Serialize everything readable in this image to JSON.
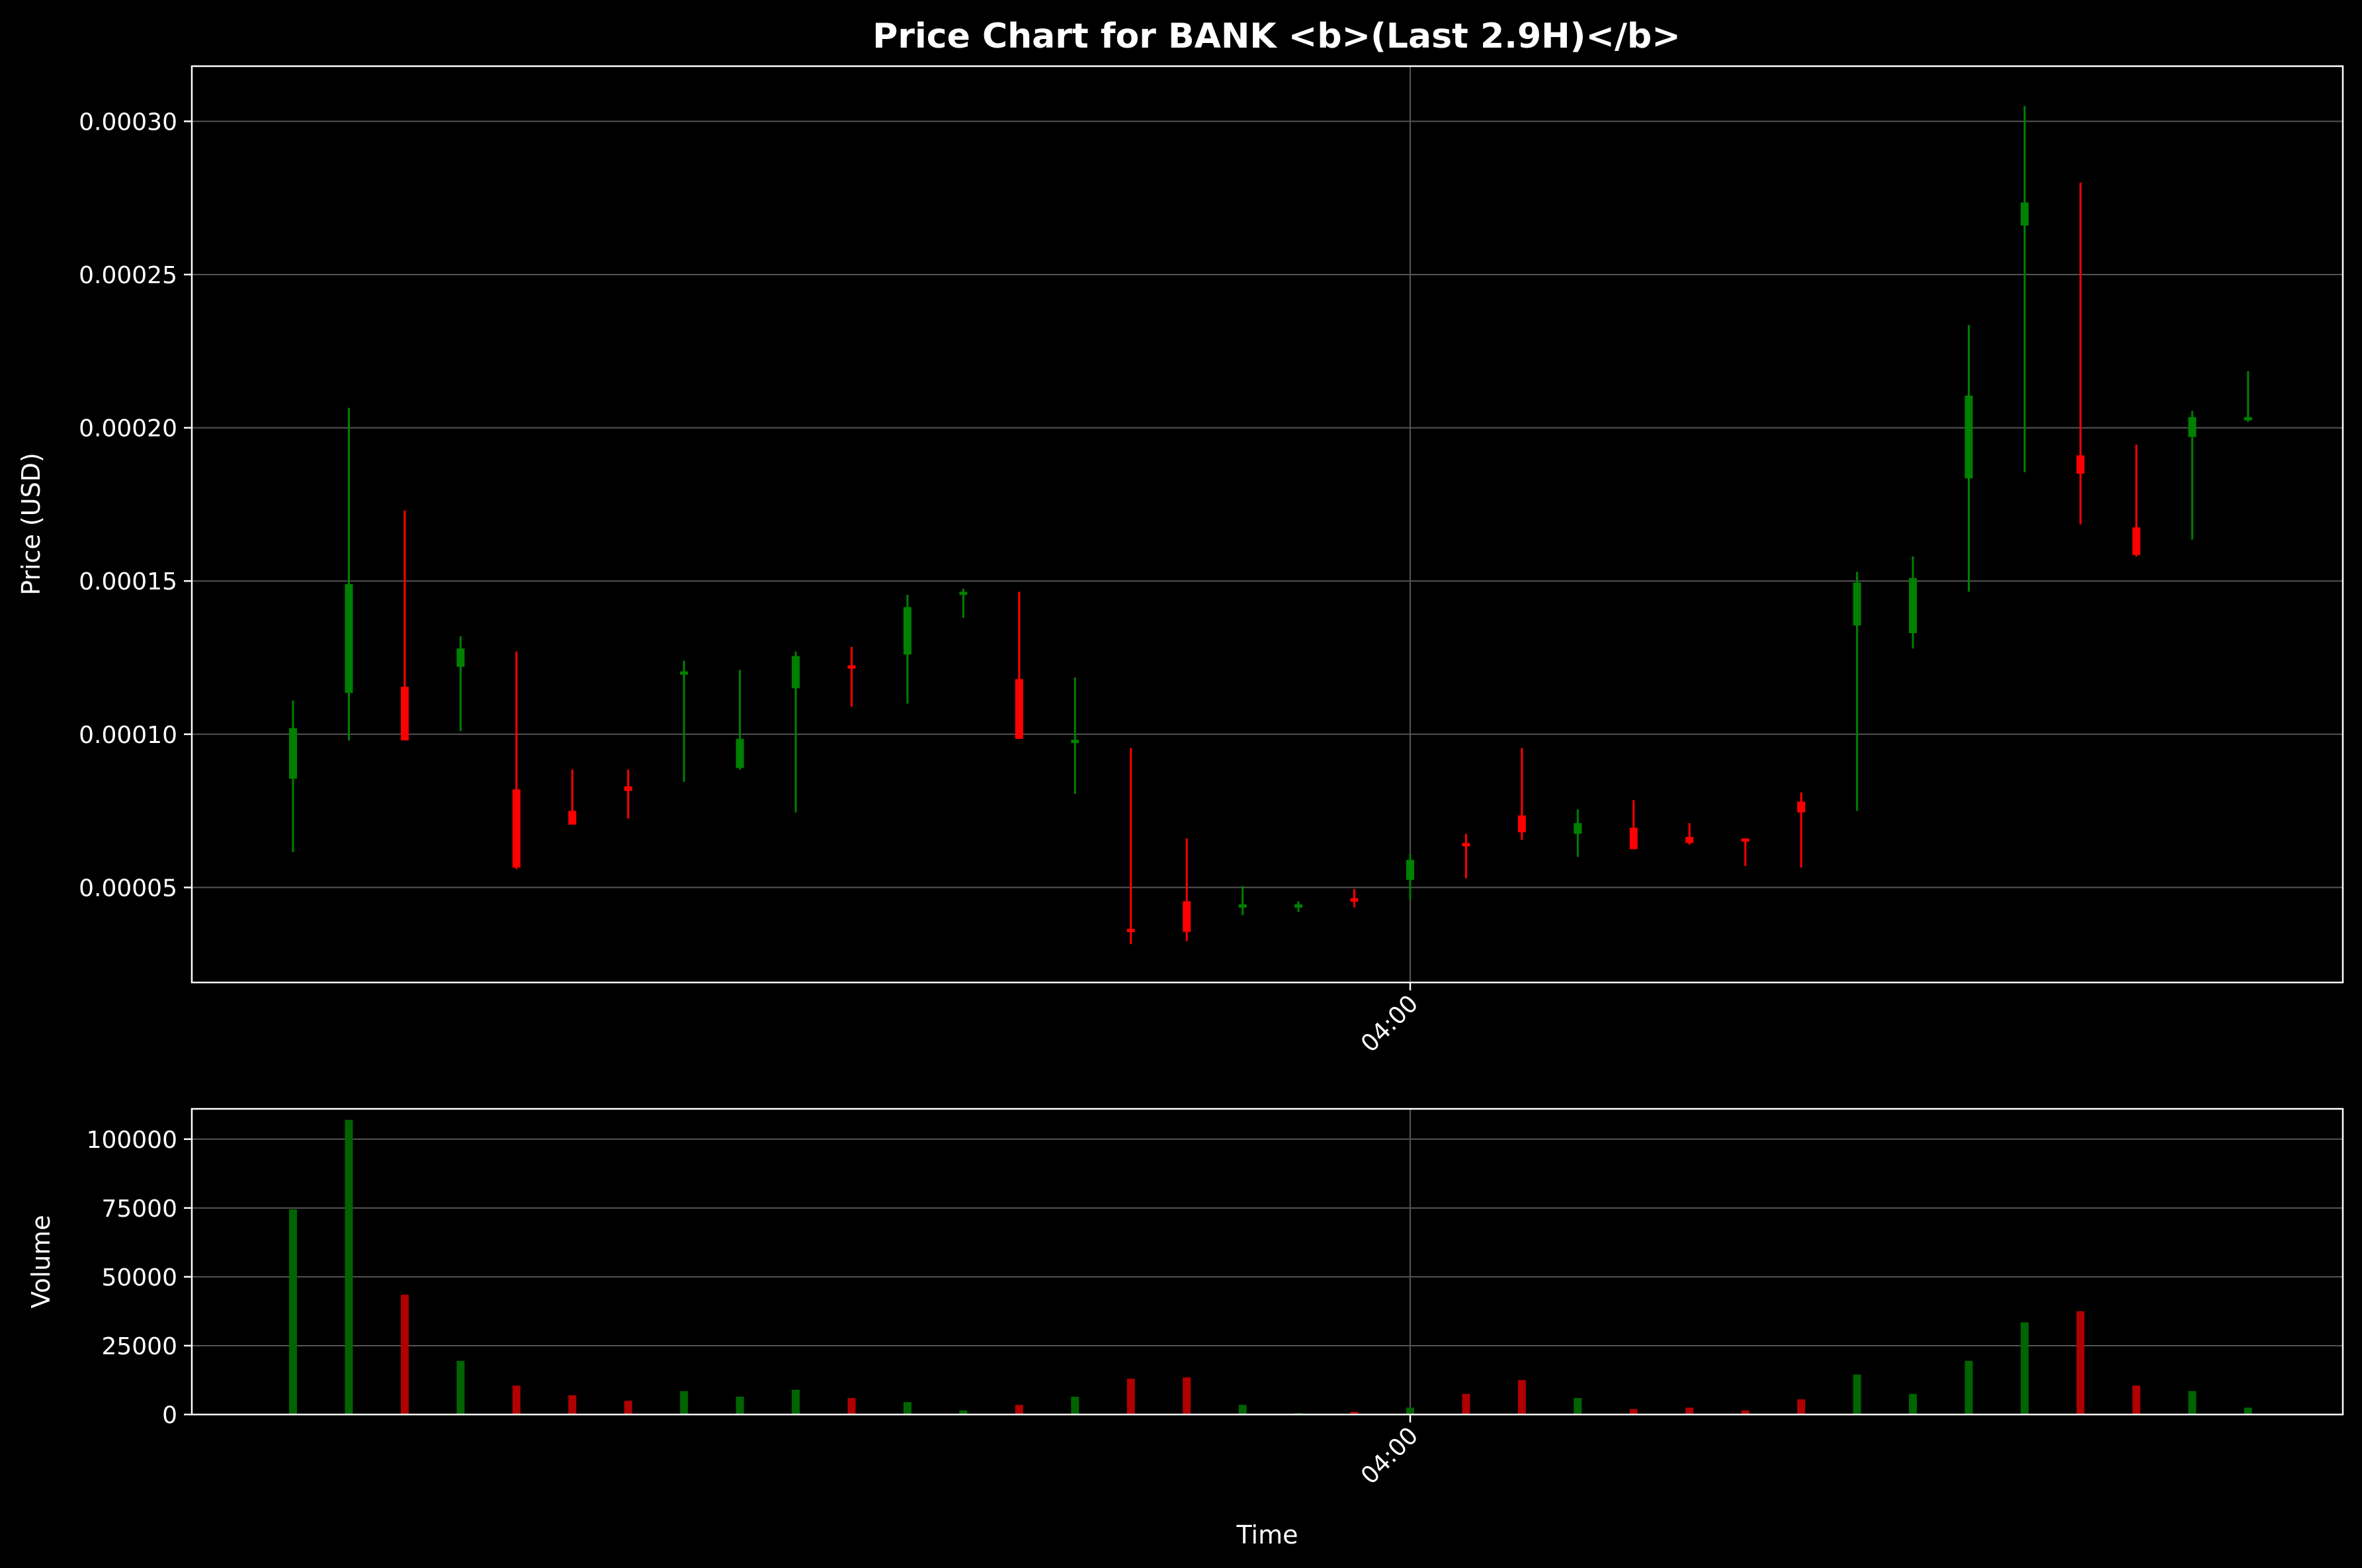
{
  "chart_data": {
    "type": "candlestick",
    "title": "Price Chart for BANK <b>(Last 2.9H)</b>",
    "xlabel": "Time",
    "price_ylabel": "Price (USD)",
    "volume_ylabel": "Volume",
    "x_tick_labels": [
      "04:00"
    ],
    "price_ylim": [
      1.9e-05,
      0.000318
    ],
    "price_ticks": [
      "0.00005",
      "0.00010",
      "0.00015",
      "0.00020",
      "0.00025",
      "0.00030"
    ],
    "volume_ylim": [
      0,
      111000
    ],
    "volume_ticks": [
      "0",
      "25000",
      "50000",
      "75000",
      "100000"
    ],
    "grid": true,
    "colors": {
      "background": "#000000",
      "up": "#008000",
      "down": "#ff0000",
      "grid": "#555555",
      "text": "#ffffff"
    },
    "candles": [
      {
        "open": 8.55e-05,
        "high": 0.000111,
        "low": 6.15e-05,
        "close": 0.000102,
        "volume": 74500
      },
      {
        "open": 0.0001135,
        "high": 0.0002065,
        "low": 9.8e-05,
        "close": 0.000149,
        "volume": 107000
      },
      {
        "open": 0.0001155,
        "high": 0.000173,
        "low": 9.8e-05,
        "close": 9.8e-05,
        "volume": 43500
      },
      {
        "open": 0.000122,
        "high": 0.000132,
        "low": 0.000101,
        "close": 0.000128,
        "volume": 19500
      },
      {
        "open": 8.2e-05,
        "high": 0.000127,
        "low": 5.6e-05,
        "close": 5.65e-05,
        "volume": 10500
      },
      {
        "open": 7.5e-05,
        "high": 8.85e-05,
        "low": 7.05e-05,
        "close": 7.05e-05,
        "volume": 7000
      },
      {
        "open": 8.3e-05,
        "high": 8.85e-05,
        "low": 7.25e-05,
        "close": 8.15e-05,
        "volume": 5000
      },
      {
        "open": 0.0001195,
        "high": 0.000124,
        "low": 8.45e-05,
        "close": 0.0001205,
        "volume": 8500
      },
      {
        "open": 8.9e-05,
        "high": 0.000121,
        "low": 8.85e-05,
        "close": 9.85e-05,
        "volume": 6500
      },
      {
        "open": 0.000115,
        "high": 0.000127,
        "low": 7.45e-05,
        "close": 0.0001255,
        "volume": 9000
      },
      {
        "open": 0.0001225,
        "high": 0.0001285,
        "low": 0.000109,
        "close": 0.000122,
        "volume": 6000
      },
      {
        "open": 0.000126,
        "high": 0.0001455,
        "low": 0.00011,
        "close": 0.0001415,
        "volume": 4500
      },
      {
        "open": 0.0001455,
        "high": 0.0001475,
        "low": 0.000138,
        "close": 0.0001465,
        "volume": 1500
      },
      {
        "open": 0.000118,
        "high": 0.0001465,
        "low": 9.85e-05,
        "close": 9.85e-05,
        "volume": 3500
      },
      {
        "open": 9.8e-05,
        "high": 0.0001185,
        "low": 8.05e-05,
        "close": 9.82e-05,
        "volume": 6500
      },
      {
        "open": 3.65e-05,
        "high": 9.55e-05,
        "low": 3.15e-05,
        "close": 3.55e-05,
        "volume": 13000
      },
      {
        "open": 4.55e-05,
        "high": 6.6e-05,
        "low": 3.25e-05,
        "close": 3.55e-05,
        "volume": 13500
      },
      {
        "open": 4.4e-05,
        "high": 5.05e-05,
        "low": 4.1e-05,
        "close": 4.45e-05,
        "volume": 3500
      },
      {
        "open": 4.4e-05,
        "high": 4.55e-05,
        "low": 4.2e-05,
        "close": 4.45e-05,
        "volume": 500
      },
      {
        "open": 4.65e-05,
        "high": 4.95e-05,
        "low": 4.35e-05,
        "close": 4.62e-05,
        "volume": 1000
      },
      {
        "open": 5.25e-05,
        "high": 6.1e-05,
        "low": 4.6e-05,
        "close": 5.9e-05,
        "volume": 2500
      },
      {
        "open": 6.45e-05,
        "high": 6.75e-05,
        "low": 5.3e-05,
        "close": 6.35e-05,
        "volume": 7500
      },
      {
        "open": 7.35e-05,
        "high": 9.55e-05,
        "low": 6.55e-05,
        "close": 6.8e-05,
        "volume": 12500
      },
      {
        "open": 6.75e-05,
        "high": 7.55e-05,
        "low": 6e-05,
        "close": 7.1e-05,
        "volume": 6000
      },
      {
        "open": 6.95e-05,
        "high": 7.85e-05,
        "low": 6.25e-05,
        "close": 6.25e-05,
        "volume": 2000
      },
      {
        "open": 6.65e-05,
        "high": 7.1e-05,
        "low": 6.4e-05,
        "close": 6.45e-05,
        "volume": 2500
      },
      {
        "open": 6.6e-05,
        "high": 6.6e-05,
        "low": 5.7e-05,
        "close": 6.55e-05,
        "volume": 1500
      },
      {
        "open": 7.8e-05,
        "high": 8.1e-05,
        "low": 5.65e-05,
        "close": 7.45e-05,
        "volume": 5500
      },
      {
        "open": 0.0001355,
        "high": 0.000153,
        "low": 7.5e-05,
        "close": 0.0001495,
        "volume": 14500
      },
      {
        "open": 0.000133,
        "high": 0.000158,
        "low": 0.000128,
        "close": 0.000151,
        "volume": 7500
      },
      {
        "open": 0.0001835,
        "high": 0.0002335,
        "low": 0.0001465,
        "close": 0.0002105,
        "volume": 19500
      },
      {
        "open": 0.000266,
        "high": 0.000305,
        "low": 0.0001855,
        "close": 0.0002735,
        "volume": 33500
      },
      {
        "open": 0.000191,
        "high": 0.00028,
        "low": 0.0001685,
        "close": 0.000185,
        "volume": 37500
      },
      {
        "open": 0.0001675,
        "high": 0.0001945,
        "low": 0.000158,
        "close": 0.0001585,
        "volume": 10500
      },
      {
        "open": 0.000197,
        "high": 0.0002055,
        "low": 0.0001635,
        "close": 0.0002035,
        "volume": 8500
      },
      {
        "open": 0.0002035,
        "high": 0.0002185,
        "low": 0.000202,
        "close": 0.0002035,
        "volume": 2500
      }
    ]
  }
}
